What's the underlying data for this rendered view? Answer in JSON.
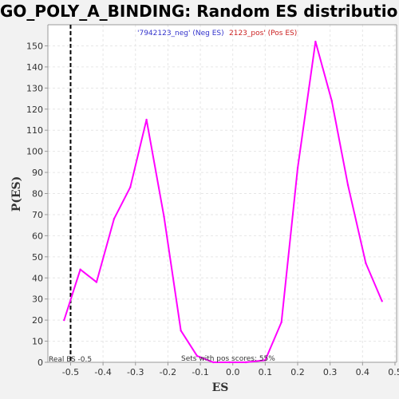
{
  "chart_data": {
    "type": "line",
    "title": "GO_POLY_A_BINDING: Random ES distribution",
    "xlabel": "ES",
    "ylabel": "P(ES)",
    "xlim": [
      -0.57,
      0.505
    ],
    "ylim": [
      0,
      160
    ],
    "x_ticks": [
      -0.5,
      -0.4,
      -0.3,
      -0.2,
      -0.1,
      0.0,
      0.1,
      0.2,
      0.3,
      0.4,
      0.5
    ],
    "x_tick_labels": [
      "-0.5",
      "-0.4",
      "-0.3",
      "-0.2",
      "-0.1",
      "0.0",
      "0.1",
      "0.2",
      "0.3",
      "0.4",
      "0.5"
    ],
    "y_ticks": [
      0,
      10,
      20,
      30,
      40,
      50,
      60,
      70,
      80,
      90,
      100,
      110,
      120,
      130,
      140,
      150
    ],
    "y_tick_labels": [
      "0",
      "10",
      "20",
      "30",
      "40",
      "50",
      "60",
      "70",
      "80",
      "90",
      "100",
      "110",
      "120",
      "130",
      "140",
      "150"
    ],
    "grid": true,
    "series": [
      {
        "name": "",
        "color": "#ff00ff",
        "x": [
          -0.52,
          -0.47,
          -0.42,
          -0.366,
          -0.316,
          -0.266,
          -0.212,
          -0.16,
          -0.11,
          -0.06,
          -0.01,
          0.04,
          0.1,
          0.15,
          0.2,
          0.255,
          0.305,
          0.355,
          0.41,
          0.46
        ],
        "y": [
          20,
          44,
          38,
          68,
          83,
          115,
          69,
          15,
          3,
          0,
          0,
          0,
          1,
          19,
          92,
          152,
          124,
          84,
          47,
          29
        ]
      }
    ],
    "annotations": {
      "real_es_line_x": -0.5,
      "real_es_label": "Real ES -0.5",
      "sets_pos_label": "Sets with pos scores: 55%",
      "legend_neg": "'7942123_neg' (Neg ES)",
      "legend_pos": "2123_pos' (Pos ES)"
    },
    "colors": {
      "series": "#ff00ff",
      "grid": "#e6e6e6",
      "real_es_line": "#000000",
      "legend_neg": "#3333cc",
      "legend_pos": "#cc2222"
    }
  }
}
